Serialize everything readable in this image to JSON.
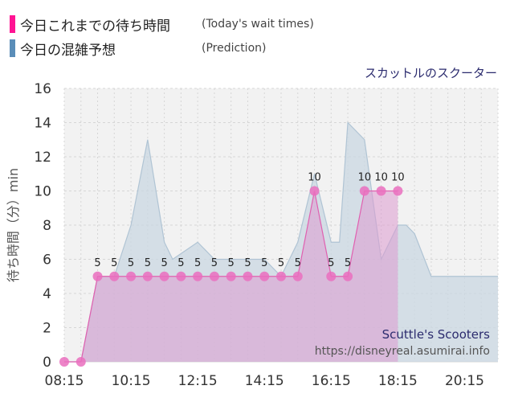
{
  "legend": [
    {
      "label": "今日これまでの待ち時間",
      "sub": "(Today's wait times)",
      "color": "#ff1493"
    },
    {
      "label": "今日の混雑予想",
      "sub": "(Prediction)",
      "color": "#5a8db8"
    }
  ],
  "attraction_ja": "スカットルのスクーター",
  "watermark": {
    "title": "Scuttle's Scooters",
    "url": "https://disneyreal.asumirai.info"
  },
  "colors": {
    "actual_line": "#e060b0",
    "actual_fill": "#dd9ad0",
    "actual_marker": "#ea6fbe",
    "predicted_line": "#b0c4d4",
    "predicted_fill": "#c9d7e2",
    "plot_bg": "#f2f2f2",
    "grid": "#d6d6d6",
    "attraction_title": "#2b2b6e",
    "watermark_title": "#2b2b6e",
    "watermark_url": "#555555"
  },
  "chart_data": {
    "type": "area",
    "ylabel": "待ち時間（分）min",
    "ylim": [
      0,
      16
    ],
    "yticks": [
      0,
      2,
      4,
      6,
      8,
      10,
      12,
      14,
      16
    ],
    "xlim": [
      "08:15",
      "21:15"
    ],
    "xtick_labels": [
      "08:15",
      "10:15",
      "12:15",
      "14:15",
      "16:15",
      "18:15",
      "20:15"
    ],
    "grid": true,
    "series": [
      {
        "name": "今日これまでの待ち時間",
        "x": [
          "08:15",
          "08:45",
          "09:15",
          "09:45",
          "10:15",
          "10:45",
          "11:15",
          "11:45",
          "12:15",
          "12:45",
          "13:15",
          "13:45",
          "14:15",
          "14:45",
          "15:15",
          "15:45",
          "16:15",
          "16:45",
          "17:15",
          "17:45",
          "18:15"
        ],
        "values": [
          0,
          0,
          5,
          5,
          5,
          5,
          5,
          5,
          5,
          5,
          5,
          5,
          5,
          5,
          5,
          10,
          5,
          5,
          10,
          10,
          10
        ],
        "labels": [
          "",
          "",
          "5",
          "5",
          "5",
          "5",
          "5",
          "5",
          "5",
          "5",
          "5",
          "5",
          "5",
          "5",
          "5",
          "10",
          "5",
          "5",
          "10",
          "10",
          "10"
        ]
      },
      {
        "name": "今日の混雑予想",
        "x": [
          "08:15",
          "08:45",
          "09:15",
          "09:45",
          "10:15",
          "10:45",
          "11:15",
          "11:30",
          "12:15",
          "12:45",
          "13:15",
          "13:45",
          "14:15",
          "14:45",
          "15:15",
          "15:45",
          "16:15",
          "16:30",
          "16:45",
          "17:15",
          "17:45",
          "18:15",
          "18:30",
          "18:45",
          "19:15",
          "19:45",
          "20:15",
          "20:45",
          "21:15"
        ],
        "values": [
          0,
          0,
          5,
          5,
          8,
          13,
          7,
          6,
          7,
          6,
          6,
          6,
          6,
          5,
          7,
          11,
          7,
          7,
          14,
          13,
          6,
          8,
          8,
          7.5,
          5,
          5,
          5,
          5,
          5
        ]
      }
    ]
  }
}
